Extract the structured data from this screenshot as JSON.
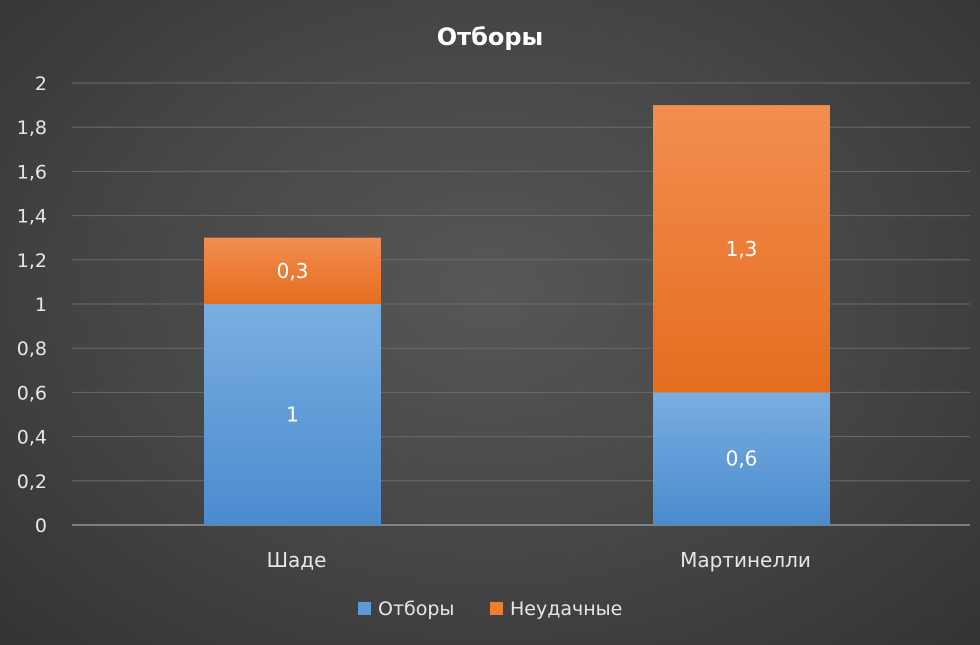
{
  "chart_data": {
    "type": "bar",
    "stacked": true,
    "title": "Отборы",
    "categories": [
      "Шаде",
      "Мартинелли"
    ],
    "series": [
      {
        "name": "Отборы",
        "values": [
          1,
          0.6
        ],
        "labels": [
          "1",
          "0,6"
        ],
        "color": "#5b9bd5"
      },
      {
        "name": "Неудачные",
        "values": [
          0.3,
          1.3
        ],
        "labels": [
          "0,3",
          "1,3"
        ],
        "color": "#ed7d31"
      }
    ],
    "ylim": [
      0,
      2
    ],
    "yticks": [
      "0",
      "0,2",
      "0,4",
      "0,6",
      "0,8",
      "1",
      "1,2",
      "1,4",
      "1,6",
      "1,8",
      "2"
    ],
    "grid": true,
    "legend_position": "bottom"
  }
}
